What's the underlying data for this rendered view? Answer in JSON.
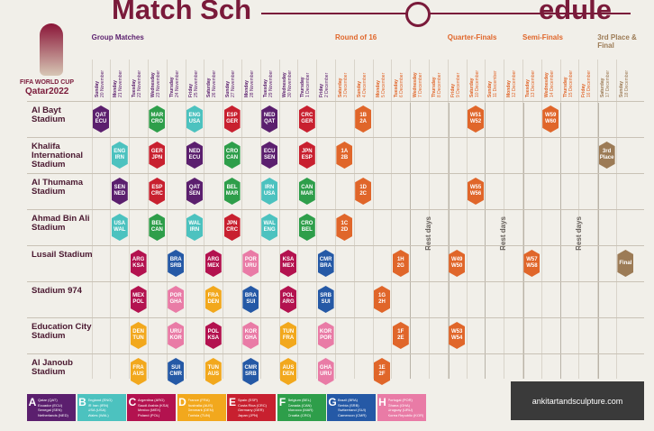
{
  "title": {
    "left": "Match Sch",
    "right": "edule"
  },
  "logo": {
    "line1": "FIFA WORLD CUP",
    "line2": "Qatar2022"
  },
  "stages": [
    {
      "name": "Group Matches",
      "color": "#5b1f6e",
      "days": [
        {
          "weekday": "Sunday",
          "date": "20 November"
        },
        {
          "weekday": "Monday",
          "date": "21 November"
        },
        {
          "weekday": "Tuesday",
          "date": "22 November"
        },
        {
          "weekday": "Wednesday",
          "date": "23 November"
        },
        {
          "weekday": "Thursday",
          "date": "24 November"
        },
        {
          "weekday": "Friday",
          "date": "25 November"
        },
        {
          "weekday": "Saturday",
          "date": "26 November"
        },
        {
          "weekday": "Sunday",
          "date": "27 November"
        },
        {
          "weekday": "Monday",
          "date": "28 November"
        },
        {
          "weekday": "Tuesday",
          "date": "29 November"
        },
        {
          "weekday": "Wednesday",
          "date": "30 November"
        },
        {
          "weekday": "Thursday",
          "date": "1 December"
        },
        {
          "weekday": "Friday",
          "date": "2 December"
        }
      ]
    },
    {
      "name": "Round of 16",
      "color": "#e0662a",
      "rest": "Rest days",
      "days": [
        {
          "weekday": "Saturday",
          "date": "3 December"
        },
        {
          "weekday": "Sunday",
          "date": "4 December"
        },
        {
          "weekday": "Monday",
          "date": "5 December"
        },
        {
          "weekday": "Tuesday",
          "date": "6 December"
        },
        {
          "weekday": "Wednesday",
          "date": "7 December"
        },
        {
          "weekday": "Thursday",
          "date": "8 December"
        }
      ]
    },
    {
      "name": "Quarter-Finals",
      "color": "#e0662a",
      "rest": "Rest days",
      "days": [
        {
          "weekday": "Friday",
          "date": "9 December"
        },
        {
          "weekday": "Saturday",
          "date": "10 December"
        },
        {
          "weekday": "Sunday",
          "date": "11 December"
        },
        {
          "weekday": "Monday",
          "date": "12 December"
        }
      ]
    },
    {
      "name": "Semi-Finals",
      "color": "#e0662a",
      "rest": "Rest days",
      "days": [
        {
          "weekday": "Tuesday",
          "date": "13 December"
        },
        {
          "weekday": "Wednesday",
          "date": "14 December"
        },
        {
          "weekday": "Thursday",
          "date": "15 December"
        },
        {
          "weekday": "Friday",
          "date": "16 December"
        }
      ]
    },
    {
      "name": "3rd Place & Final",
      "color": "#9c7b56",
      "days": [
        {
          "weekday": "Saturday",
          "date": "17 December"
        },
        {
          "weekday": "Sunday",
          "date": "18 December"
        }
      ]
    }
  ],
  "groups": [
    {
      "letter": "A",
      "color": "#5b1f6e",
      "teams": [
        "Qatar (QAT)",
        "Ecuador (ECU)",
        "Senegal (SEN)",
        "Netherlands (NED)"
      ]
    },
    {
      "letter": "B",
      "color": "#4cc2bf",
      "teams": [
        "England (ENG)",
        "IR Iran (IRN)",
        "USA (USA)",
        "Wales (WAL)"
      ]
    },
    {
      "letter": "C",
      "color": "#b3124f",
      "teams": [
        "Argentina (ARG)",
        "Saudi Arabia (KSA)",
        "Mexico (MEX)",
        "Poland (POL)"
      ]
    },
    {
      "letter": "D",
      "color": "#f2a81d",
      "teams": [
        "France (FRA)",
        "Australia (AUS)",
        "Denmark (DEN)",
        "Tunisia (TUN)"
      ]
    },
    {
      "letter": "E",
      "color": "#c8202f",
      "teams": [
        "Spain (ESP)",
        "Costa Rica (CRC)",
        "Germany (GER)",
        "Japan (JPN)"
      ]
    },
    {
      "letter": "F",
      "color": "#2e9e4a",
      "teams": [
        "Belgium (BEL)",
        "Canada (CAN)",
        "Morocco (MAR)",
        "Croatia (CRO)"
      ]
    },
    {
      "letter": "G",
      "color": "#2559a6",
      "teams": [
        "Brazil (BRA)",
        "Serbia (SRB)",
        "Switzerland (SUI)",
        "Cameroon (CMR)"
      ]
    },
    {
      "letter": "H",
      "color": "#e97ba6",
      "teams": [
        "Portugal (POR)",
        "Ghana (GHA)",
        "Uruguay (URU)",
        "Korea Republic (KOR)"
      ]
    }
  ],
  "stadiums": [
    {
      "name": "Al Bayt Stadium",
      "matches": [
        {
          "date": "20 November",
          "group": "A",
          "teams": [
            "QAT",
            "ECU"
          ]
        },
        {
          "date": "23 November",
          "group": "F",
          "teams": [
            "MAR",
            "CRO"
          ]
        },
        {
          "date": "25 November",
          "group": "B",
          "teams": [
            "ENG",
            "USA"
          ]
        },
        {
          "date": "27 November",
          "group": "E",
          "teams": [
            "ESP",
            "GER"
          ]
        },
        {
          "date": "29 November",
          "group": "A",
          "teams": [
            "NED",
            "QAT"
          ]
        },
        {
          "date": "1 December",
          "group": "E",
          "teams": [
            "CRC",
            "GER"
          ]
        },
        {
          "date": "4 December",
          "teams": [
            "1B",
            "2A"
          ]
        },
        {
          "date": "10 December",
          "teams": [
            "W51",
            "W52"
          ]
        },
        {
          "date": "14 December",
          "teams": [
            "W59",
            "W60"
          ]
        }
      ]
    },
    {
      "name": "Khalifa International Stadium",
      "matches": [
        {
          "date": "21 November",
          "group": "B",
          "teams": [
            "ENG",
            "IRN"
          ]
        },
        {
          "date": "23 November",
          "group": "E",
          "teams": [
            "GER",
            "JPN"
          ]
        },
        {
          "date": "25 November",
          "group": "A",
          "teams": [
            "NED",
            "ECU"
          ]
        },
        {
          "date": "27 November",
          "group": "F",
          "teams": [
            "CRO",
            "CAN"
          ]
        },
        {
          "date": "29 November",
          "group": "A",
          "teams": [
            "ECU",
            "SEN"
          ]
        },
        {
          "date": "1 December",
          "group": "E",
          "teams": [
            "JPN",
            "ESP"
          ]
        },
        {
          "date": "3 December",
          "teams": [
            "1A",
            "2B"
          ]
        },
        {
          "date": "17 December",
          "teams": [
            "3rd Place"
          ]
        }
      ]
    },
    {
      "name": "Al Thumama Stadium",
      "matches": [
        {
          "date": "21 November",
          "group": "A",
          "teams": [
            "SEN",
            "NED"
          ]
        },
        {
          "date": "23 November",
          "group": "E",
          "teams": [
            "ESP",
            "CRC"
          ]
        },
        {
          "date": "25 November",
          "group": "A",
          "teams": [
            "QAT",
            "SEN"
          ]
        },
        {
          "date": "27 November",
          "group": "F",
          "teams": [
            "BEL",
            "MAR"
          ]
        },
        {
          "date": "29 November",
          "group": "B",
          "teams": [
            "IRN",
            "USA"
          ]
        },
        {
          "date": "1 December",
          "group": "F",
          "teams": [
            "CAN",
            "MAR"
          ]
        },
        {
          "date": "4 December",
          "teams": [
            "1D",
            "2C"
          ]
        },
        {
          "date": "10 December",
          "teams": [
            "W55",
            "W56"
          ]
        }
      ]
    },
    {
      "name": "Ahmad Bin Ali Stadium",
      "matches": [
        {
          "date": "21 November",
          "group": "B",
          "teams": [
            "USA",
            "WAL"
          ]
        },
        {
          "date": "23 November",
          "group": "F",
          "teams": [
            "BEL",
            "CAN"
          ]
        },
        {
          "date": "25 November",
          "group": "B",
          "teams": [
            "WAL",
            "IRN"
          ]
        },
        {
          "date": "27 November",
          "group": "E",
          "teams": [
            "JPN",
            "CRC"
          ]
        },
        {
          "date": "29 November",
          "group": "B",
          "teams": [
            "WAL",
            "ENG"
          ]
        },
        {
          "date": "1 December",
          "group": "F",
          "teams": [
            "CRO",
            "BEL"
          ]
        },
        {
          "date": "3 December",
          "teams": [
            "1C",
            "2D"
          ]
        }
      ]
    },
    {
      "name": "Lusail Stadium",
      "matches": [
        {
          "date": "22 November",
          "group": "C",
          "teams": [
            "ARG",
            "KSA"
          ]
        },
        {
          "date": "24 November",
          "group": "G",
          "teams": [
            "BRA",
            "SRB"
          ]
        },
        {
          "date": "26 November",
          "group": "C",
          "teams": [
            "ARG",
            "MEX"
          ]
        },
        {
          "date": "28 November",
          "group": "H",
          "teams": [
            "POR",
            "URU"
          ]
        },
        {
          "date": "30 November",
          "group": "C",
          "teams": [
            "KSA",
            "MEX"
          ]
        },
        {
          "date": "2 December",
          "group": "G",
          "teams": [
            "CMR",
            "BRA"
          ]
        },
        {
          "date": "6 December",
          "teams": [
            "1H",
            "2G"
          ]
        },
        {
          "date": "9 December",
          "teams": [
            "W49",
            "W50"
          ]
        },
        {
          "date": "13 December",
          "teams": [
            "W57",
            "W58"
          ]
        },
        {
          "date": "18 December",
          "teams": [
            "Final"
          ]
        }
      ]
    },
    {
      "name": "Stadium 974",
      "matches": [
        {
          "date": "22 November",
          "group": "C",
          "teams": [
            "MEX",
            "POL"
          ]
        },
        {
          "date": "24 November",
          "group": "H",
          "teams": [
            "POR",
            "GHA"
          ]
        },
        {
          "date": "26 November",
          "group": "D",
          "teams": [
            "FRA",
            "DEN"
          ]
        },
        {
          "date": "28 November",
          "group": "G",
          "teams": [
            "BRA",
            "SUI"
          ]
        },
        {
          "date": "30 November",
          "group": "C",
          "teams": [
            "POL",
            "ARG"
          ]
        },
        {
          "date": "2 December",
          "group": "G",
          "teams": [
            "SRB",
            "SUI"
          ]
        },
        {
          "date": "5 December",
          "teams": [
            "1G",
            "2H"
          ]
        }
      ]
    },
    {
      "name": "Education City Stadium",
      "matches": [
        {
          "date": "22 November",
          "group": "D",
          "teams": [
            "DEN",
            "TUN"
          ]
        },
        {
          "date": "24 November",
          "group": "H",
          "teams": [
            "URU",
            "KOR"
          ]
        },
        {
          "date": "26 November",
          "group": "C",
          "teams": [
            "POL",
            "KSA"
          ]
        },
        {
          "date": "28 November",
          "group": "H",
          "teams": [
            "KOR",
            "GHA"
          ]
        },
        {
          "date": "30 November",
          "group": "D",
          "teams": [
            "TUN",
            "FRA"
          ]
        },
        {
          "date": "2 December",
          "group": "H",
          "teams": [
            "KOR",
            "POR"
          ]
        },
        {
          "date": "6 December",
          "teams": [
            "1F",
            "2E"
          ]
        },
        {
          "date": "9 December",
          "teams": [
            "W53",
            "W54"
          ]
        }
      ]
    },
    {
      "name": "Al Janoub Stadium",
      "matches": [
        {
          "date": "22 November",
          "group": "D",
          "teams": [
            "FRA",
            "AUS"
          ]
        },
        {
          "date": "24 November",
          "group": "G",
          "teams": [
            "SUI",
            "CMR"
          ]
        },
        {
          "date": "26 November",
          "group": "D",
          "teams": [
            "TUN",
            "AUS"
          ]
        },
        {
          "date": "28 November",
          "group": "G",
          "teams": [
            "CMR",
            "SRB"
          ]
        },
        {
          "date": "30 November",
          "group": "D",
          "teams": [
            "AUS",
            "DEN"
          ]
        },
        {
          "date": "2 December",
          "group": "H",
          "teams": [
            "GHA",
            "URU"
          ]
        },
        {
          "date": "5 December",
          "teams": [
            "1E",
            "2F"
          ]
        }
      ]
    }
  ],
  "watermark": "ankitartandsculpture.com"
}
